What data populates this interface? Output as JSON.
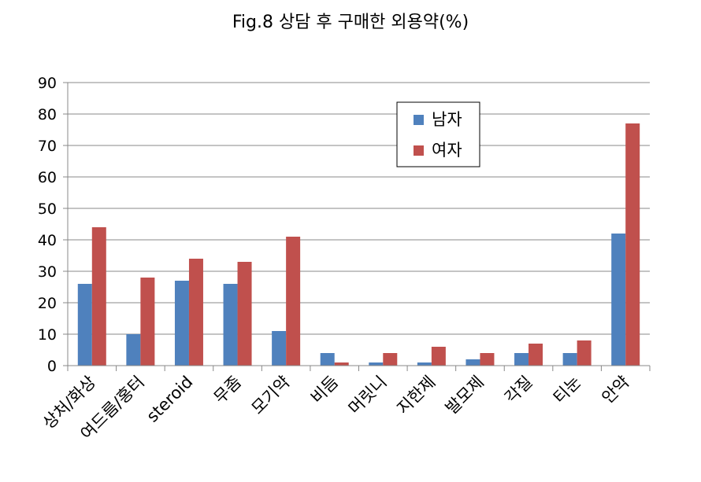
{
  "chart_data": {
    "type": "bar",
    "title": "Fig.8 상담 후 구매한 외용약(%)",
    "xlabel": "",
    "ylabel": "",
    "ylim": [
      0,
      90
    ],
    "yticks": [
      0,
      10,
      20,
      30,
      40,
      50,
      60,
      70,
      80,
      90
    ],
    "grid": true,
    "legend_position": "upper-right-inside",
    "categories": [
      "상처/화상",
      "여드름/홍터",
      "steroid",
      "무좀",
      "모기약",
      "비듬",
      "머릿니",
      "지한제",
      "발모제",
      "각질",
      "티눈",
      "안약"
    ],
    "series": [
      {
        "name": "남자",
        "color": "#4f81bd",
        "values": [
          26,
          10,
          27,
          26,
          11,
          4,
          1,
          1,
          2,
          4,
          4,
          42
        ]
      },
      {
        "name": "여자",
        "color": "#c0504d",
        "values": [
          44,
          28,
          34,
          33,
          41,
          1,
          4,
          6,
          4,
          7,
          8,
          77
        ]
      }
    ]
  }
}
